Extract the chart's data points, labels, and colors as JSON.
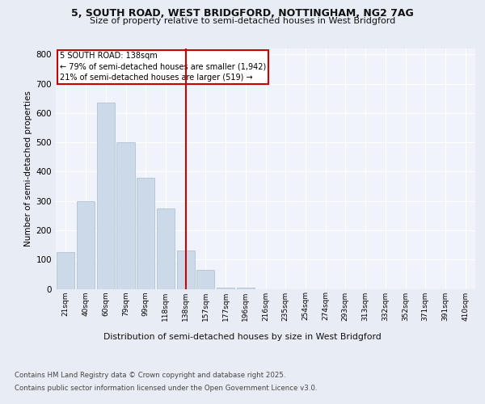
{
  "title_line1": "5, SOUTH ROAD, WEST BRIDGFORD, NOTTINGHAM, NG2 7AG",
  "title_line2": "Size of property relative to semi-detached houses in West Bridgford",
  "xlabel": "Distribution of semi-detached houses by size in West Bridgford",
  "ylabel": "Number of semi-detached properties",
  "bar_labels": [
    "21sqm",
    "40sqm",
    "60sqm",
    "79sqm",
    "99sqm",
    "118sqm",
    "138sqm",
    "157sqm",
    "177sqm",
    "196sqm",
    "216sqm",
    "235sqm",
    "254sqm",
    "274sqm",
    "293sqm",
    "313sqm",
    "332sqm",
    "352sqm",
    "371sqm",
    "391sqm",
    "410sqm"
  ],
  "bar_values": [
    125,
    300,
    635,
    500,
    380,
    275,
    130,
    65,
    3,
    3,
    0,
    0,
    0,
    0,
    0,
    0,
    0,
    0,
    0,
    0,
    0
  ],
  "bar_color": "#ccd9e8",
  "bar_edge_color": "#aabccc",
  "highlight_index": 6,
  "annotation_title": "5 SOUTH ROAD: 138sqm",
  "annotation_line1": "← 79% of semi-detached houses are smaller (1,942)",
  "annotation_line2": "21% of semi-detached houses are larger (519) →",
  "annotation_box_color": "#ffffff",
  "annotation_box_edge": "#cc0000",
  "vline_color": "#cc0000",
  "ylim": [
    0,
    820
  ],
  "yticks": [
    0,
    100,
    200,
    300,
    400,
    500,
    600,
    700,
    800
  ],
  "bg_color": "#e8edf5",
  "plot_bg_color": "#f0f4fa",
  "footer_line1": "Contains HM Land Registry data © Crown copyright and database right 2025.",
  "footer_line2": "Contains public sector information licensed under the Open Government Licence v3.0."
}
